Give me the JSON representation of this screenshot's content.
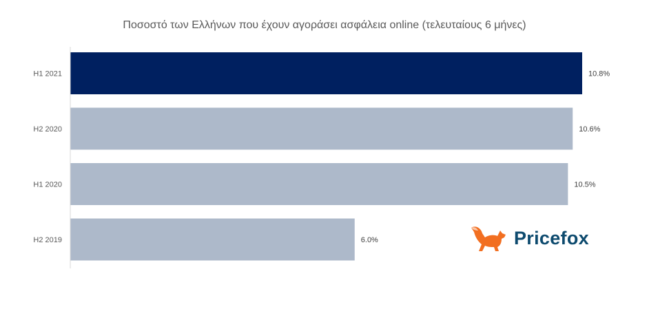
{
  "chart_data": {
    "type": "bar",
    "orientation": "horizontal",
    "title": "Ποσοστό των Ελλήνων που έχουν αγοράσει ασφάλεια online (τελευταίους 6 μήνες)",
    "categories": [
      "H1 2021",
      "H2 2020",
      "H1 2020",
      "H2 2019"
    ],
    "values": [
      10.8,
      10.6,
      10.5,
      6.0
    ],
    "data_labels": [
      "10.8%",
      "10.6%",
      "10.5%",
      "6.0%"
    ],
    "unit": "%",
    "xlim": [
      0,
      10.8
    ],
    "grid": false,
    "colors": [
      "#002060",
      "#adb9ca",
      "#adb9ca",
      "#adb9ca"
    ]
  },
  "logo": {
    "text": "Pricefox",
    "icon": "fox-icon",
    "colors": {
      "fox": "#f26f21",
      "text": "#0d4a6e"
    }
  }
}
